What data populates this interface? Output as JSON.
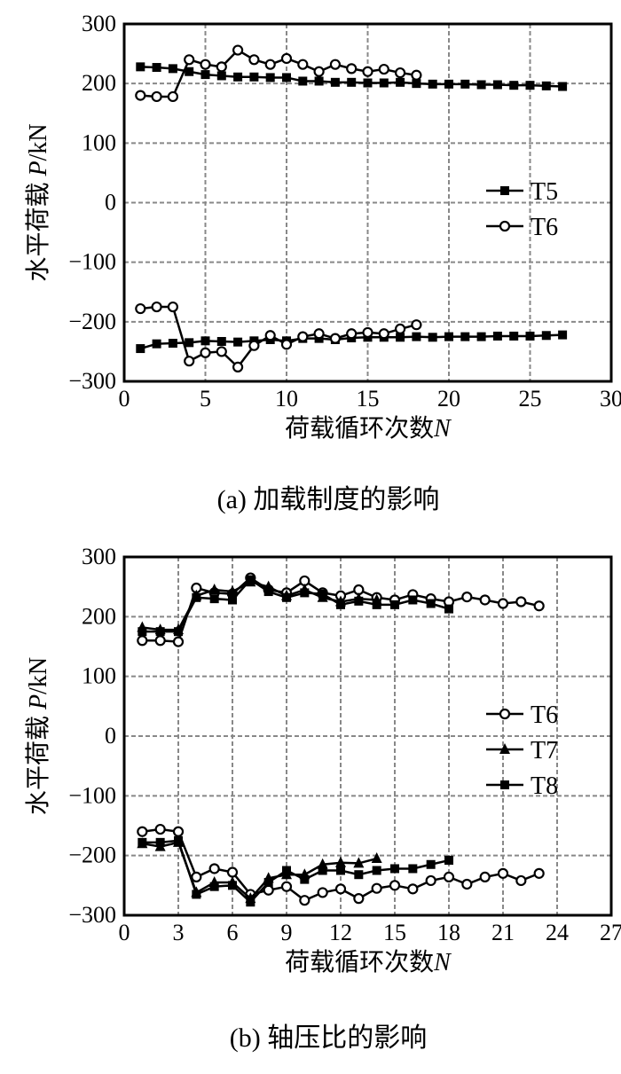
{
  "chart_data": [
    {
      "type": "line",
      "caption": "(a)  加载制度的影响",
      "xlabel": "荷载循环次数",
      "xlabel_var": "N",
      "ylabel": "水平荷载 ",
      "ylabel_var": "P",
      "ylabel_unit": "/kN",
      "xlim": [
        0,
        30
      ],
      "ylim": [
        -300,
        300
      ],
      "xticks": [
        0,
        5,
        10,
        15,
        20,
        25,
        30
      ],
      "yticks": [
        -300,
        -200,
        -100,
        0,
        100,
        200,
        300
      ],
      "grid": true,
      "legend": "center-right",
      "series": [
        {
          "name": "T5",
          "marker": "square",
          "positive": [
            228,
            227,
            225,
            220,
            215,
            213,
            211,
            211,
            210,
            210,
            204,
            204,
            202,
            202,
            201,
            201,
            202,
            200,
            199,
            199,
            199,
            198,
            198,
            197,
            197,
            196,
            195
          ],
          "negative": [
            -245,
            -237,
            -236,
            -235,
            -232,
            -233,
            -234,
            -232,
            -230,
            -232,
            -228,
            -228,
            -230,
            -227,
            -226,
            -226,
            -226,
            -225,
            -226,
            -225,
            -225,
            -225,
            -224,
            -224,
            -224,
            -223,
            -222
          ]
        },
        {
          "name": "T6",
          "marker": "circle",
          "positive": [
            180,
            178,
            178,
            240,
            232,
            228,
            256,
            240,
            232,
            242,
            232,
            220,
            232,
            225,
            220,
            224,
            218,
            214
          ],
          "negative": [
            -178,
            -175,
            -175,
            -266,
            -252,
            -250,
            -276,
            -240,
            -223,
            -238,
            -225,
            -220,
            -228,
            -220,
            -218,
            -220,
            -212,
            -205
          ]
        }
      ]
    },
    {
      "type": "line",
      "caption": "(b)  轴压比的影响",
      "xlabel": "荷载循环次数",
      "xlabel_var": "N",
      "ylabel": "水平荷载 ",
      "ylabel_var": "P",
      "ylabel_unit": "/kN",
      "xlim": [
        0,
        27
      ],
      "ylim": [
        -300,
        300
      ],
      "xticks": [
        0,
        3,
        6,
        9,
        12,
        15,
        18,
        21,
        24,
        27
      ],
      "yticks": [
        -300,
        -200,
        -100,
        0,
        100,
        200,
        300
      ],
      "grid": true,
      "legend": "center-right",
      "series": [
        {
          "name": "T6",
          "marker": "circle",
          "positive": [
            160,
            160,
            158,
            248,
            240,
            238,
            265,
            245,
            240,
            260,
            240,
            235,
            245,
            232,
            228,
            237,
            230,
            225,
            233,
            228,
            222,
            225,
            218
          ],
          "negative": [
            -160,
            -156,
            -160,
            -236,
            -222,
            -228,
            -265,
            -258,
            -252,
            -275,
            -262,
            -256,
            -272,
            -255,
            -250,
            -256,
            -242,
            -236,
            -248,
            -236,
            -230,
            -242,
            -230
          ]
        },
        {
          "name": "T7",
          "marker": "triangle",
          "positive": [
            182,
            178,
            178,
            235,
            245,
            242,
            258,
            250,
            235,
            245,
            232,
            225,
            230,
            228
          ],
          "negative": [
            -180,
            -185,
            -178,
            -262,
            -245,
            -245,
            -272,
            -238,
            -232,
            -232,
            -215,
            -212,
            -213,
            -205
          ]
        },
        {
          "name": "T8",
          "marker": "square",
          "positive": [
            175,
            175,
            175,
            232,
            230,
            228,
            262,
            242,
            232,
            240,
            238,
            220,
            226,
            220,
            220,
            228,
            222,
            213
          ],
          "negative": [
            -178,
            -178,
            -175,
            -265,
            -252,
            -250,
            -278,
            -245,
            -225,
            -240,
            -225,
            -225,
            -232,
            -225,
            -222,
            -222,
            -215,
            -208
          ]
        }
      ]
    }
  ]
}
